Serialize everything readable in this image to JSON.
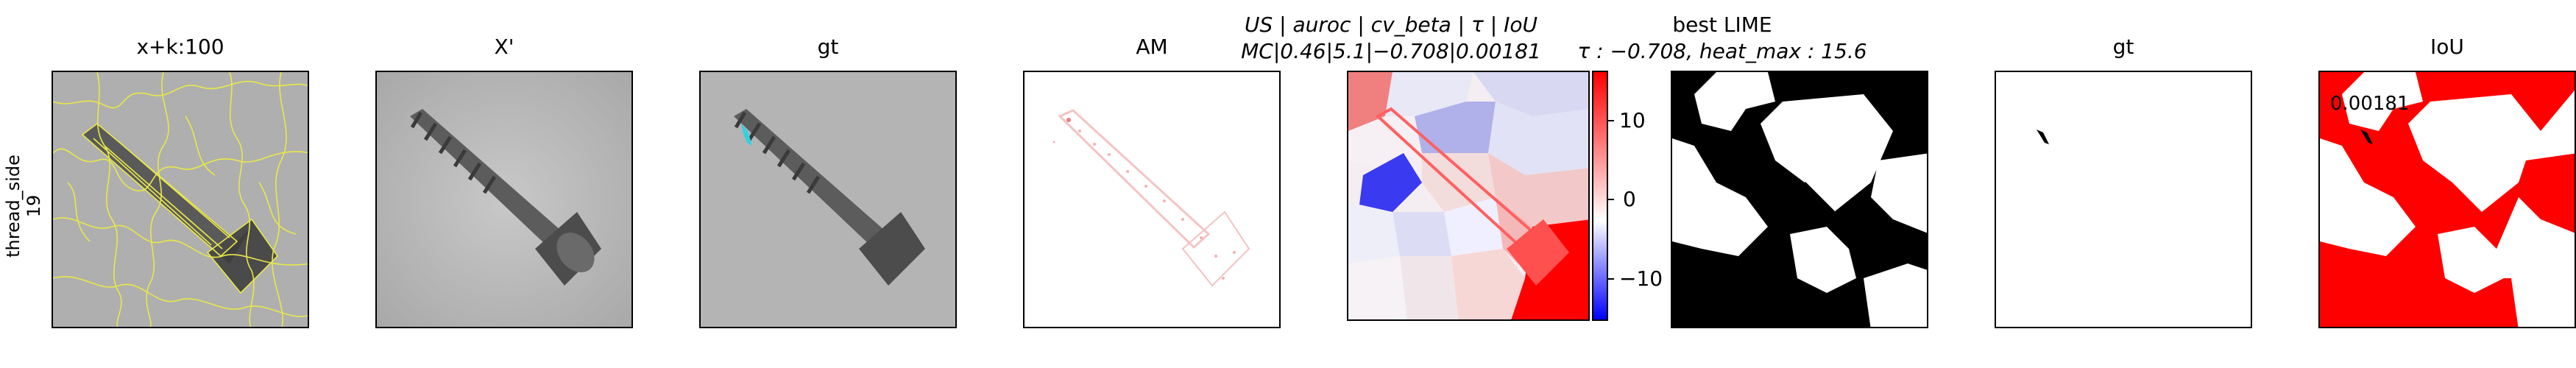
{
  "row_label": {
    "line1": "thread_side",
    "line2": "19"
  },
  "panels": [
    {
      "title": "x+k:100"
    },
    {
      "title": "X'"
    },
    {
      "title": "gt"
    },
    {
      "title": "AM"
    },
    {
      "title_line1": "US | auroc | cv_beta | τ | IoU",
      "title_line2": "MC|0.46|5.1|−0.708|0.00181"
    },
    {
      "title_line1": "best LIME",
      "title_line2": "τ : −0.708, heat_max : 15.6"
    },
    {
      "title": "gt"
    },
    {
      "title": "IoU",
      "annotation": "0.00181"
    }
  ],
  "colorbar": {
    "ticks": [
      "10",
      "0",
      "−10"
    ]
  },
  "colors": {
    "superpixel_edge": "#e8e84a",
    "gt_overlay": "#33d0e0",
    "iou_red": "#ff0000",
    "cb_pos": "#ff0000",
    "cb_neg": "#0000ff"
  },
  "icons": [
    "screw-image",
    "colorbar"
  ]
}
